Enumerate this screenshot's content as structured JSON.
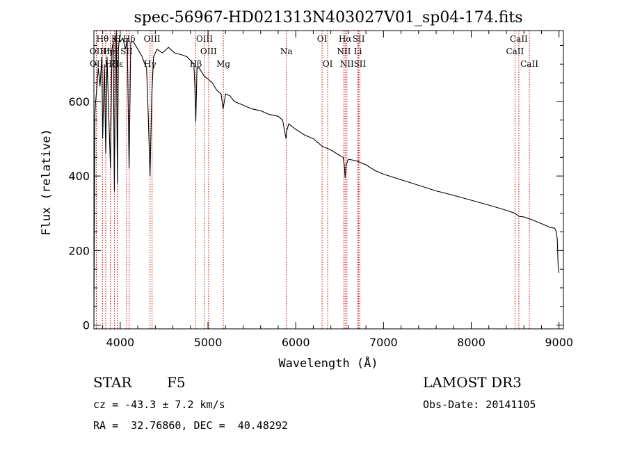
{
  "chart_data": {
    "type": "line",
    "title": "spec-56967-HD021313N403027V01_sp04-174.fits",
    "xlabel": "Wavelength (Å)",
    "ylabel": "Flux (relative)",
    "xlim": [
      3700,
      9050
    ],
    "ylim": [
      -10,
      790
    ],
    "x_ticks": [
      4000,
      5000,
      6000,
      7000,
      8000,
      9000
    ],
    "y_ticks": [
      0,
      200,
      400,
      600
    ],
    "series": [
      {
        "name": "spectrum",
        "x": [
          3700,
          3705,
          3710,
          3720,
          3735,
          3750,
          3770,
          3790,
          3800,
          3820,
          3835,
          3850,
          3870,
          3889,
          3905,
          3920,
          3933,
          3945,
          3955,
          3968,
          3980,
          3990,
          4000,
          4030,
          4060,
          4080,
          4101,
          4120,
          4150,
          4200,
          4250,
          4280,
          4300,
          4320,
          4340,
          4360,
          4380,
          4420,
          4480,
          4550,
          4620,
          4700,
          4760,
          4800,
          4840,
          4850,
          4861,
          4875,
          4900,
          4950,
          5000,
          5050,
          5100,
          5150,
          5172,
          5200,
          5250,
          5300,
          5400,
          5500,
          5600,
          5700,
          5800,
          5850,
          5890,
          5896,
          5920,
          6000,
          6100,
          6200,
          6300,
          6350,
          6400,
          6500,
          6540,
          6555,
          6563,
          6575,
          6600,
          6700,
          6800,
          6900,
          7000,
          7200,
          7400,
          7600,
          7800,
          8000,
          8200,
          8400,
          8498,
          8542,
          8600,
          8662,
          8700,
          8800,
          8900,
          8950,
          8970,
          8980,
          8990,
          9000
        ],
        "y": [
          0,
          260,
          560,
          600,
          640,
          690,
          640,
          720,
          500,
          700,
          460,
          720,
          560,
          420,
          740,
          760,
          360,
          720,
          790,
          380,
          740,
          770,
          760,
          770,
          740,
          770,
          420,
          760,
          760,
          740,
          720,
          700,
          690,
          560,
          400,
          620,
          720,
          740,
          730,
          745,
          730,
          725,
          720,
          710,
          700,
          640,
          545,
          690,
          690,
          670,
          660,
          650,
          630,
          620,
          580,
          620,
          615,
          600,
          590,
          580,
          575,
          565,
          560,
          550,
          500,
          520,
          540,
          525,
          510,
          500,
          480,
          475,
          470,
          455,
          450,
          425,
          395,
          430,
          445,
          440,
          430,
          415,
          405,
          390,
          375,
          360,
          348,
          335,
          322,
          308,
          300,
          292,
          290,
          285,
          282,
          272,
          262,
          260,
          250,
          230,
          160,
          140
        ]
      }
    ],
    "lines_top": [
      {
        "label": "Hθ",
        "x": 3798
      },
      {
        "label": "K",
        "x": 3934
      },
      {
        "label": "H",
        "x": 3969
      },
      {
        "label": "Hδ",
        "x": 4102
      },
      {
        "label": "OIII",
        "x": 4363
      },
      {
        "label": "OIII",
        "x": 4960
      },
      {
        "label": "OI",
        "x": 6300
      },
      {
        "label": "Hα",
        "x": 6563
      },
      {
        "label": "SII",
        "x": 6717
      },
      {
        "label": "CaII",
        "x": 8542
      }
    ],
    "lines_middle": [
      {
        "label": "OII",
        "x": 3727
      },
      {
        "label": "Hη",
        "x": 3835
      },
      {
        "label": "HeI",
        "x": 3889
      },
      {
        "label": "SII",
        "x": 4072
      },
      {
        "label": "OIII",
        "x": 5007
      },
      {
        "label": "Na",
        "x": 5893
      },
      {
        "label": "NII",
        "x": 6548
      },
      {
        "label": "Li",
        "x": 6708
      },
      {
        "label": "CaII",
        "x": 8498
      }
    ],
    "lines_bottom": [
      {
        "label": "OII",
        "x": 3729
      },
      {
        "label": "Hζ",
        "x": 3889
      },
      {
        "label": "Hε",
        "x": 3970
      },
      {
        "label": "Hγ",
        "x": 4340
      },
      {
        "label": "Hβ",
        "x": 4861
      },
      {
        "label": "Mg",
        "x": 5175
      },
      {
        "label": "OI",
        "x": 6364
      },
      {
        "label": "NII",
        "x": 6583
      },
      {
        "label": "SII",
        "x": 6731
      },
      {
        "label": "CaII",
        "x": 8662
      }
    ],
    "colors": {
      "spectrum": "#000000",
      "line_markers": "#cc0000",
      "axes": "#000000"
    }
  },
  "footer": {
    "object_type": "STAR",
    "subclass": "F5",
    "survey": "LAMOST DR3",
    "cz": "cz = -43.3 ± 7.2 km/s",
    "obs_date": "Obs-Date: 20141105",
    "coords": "RA =  32.76860, DEC =  40.48292"
  }
}
